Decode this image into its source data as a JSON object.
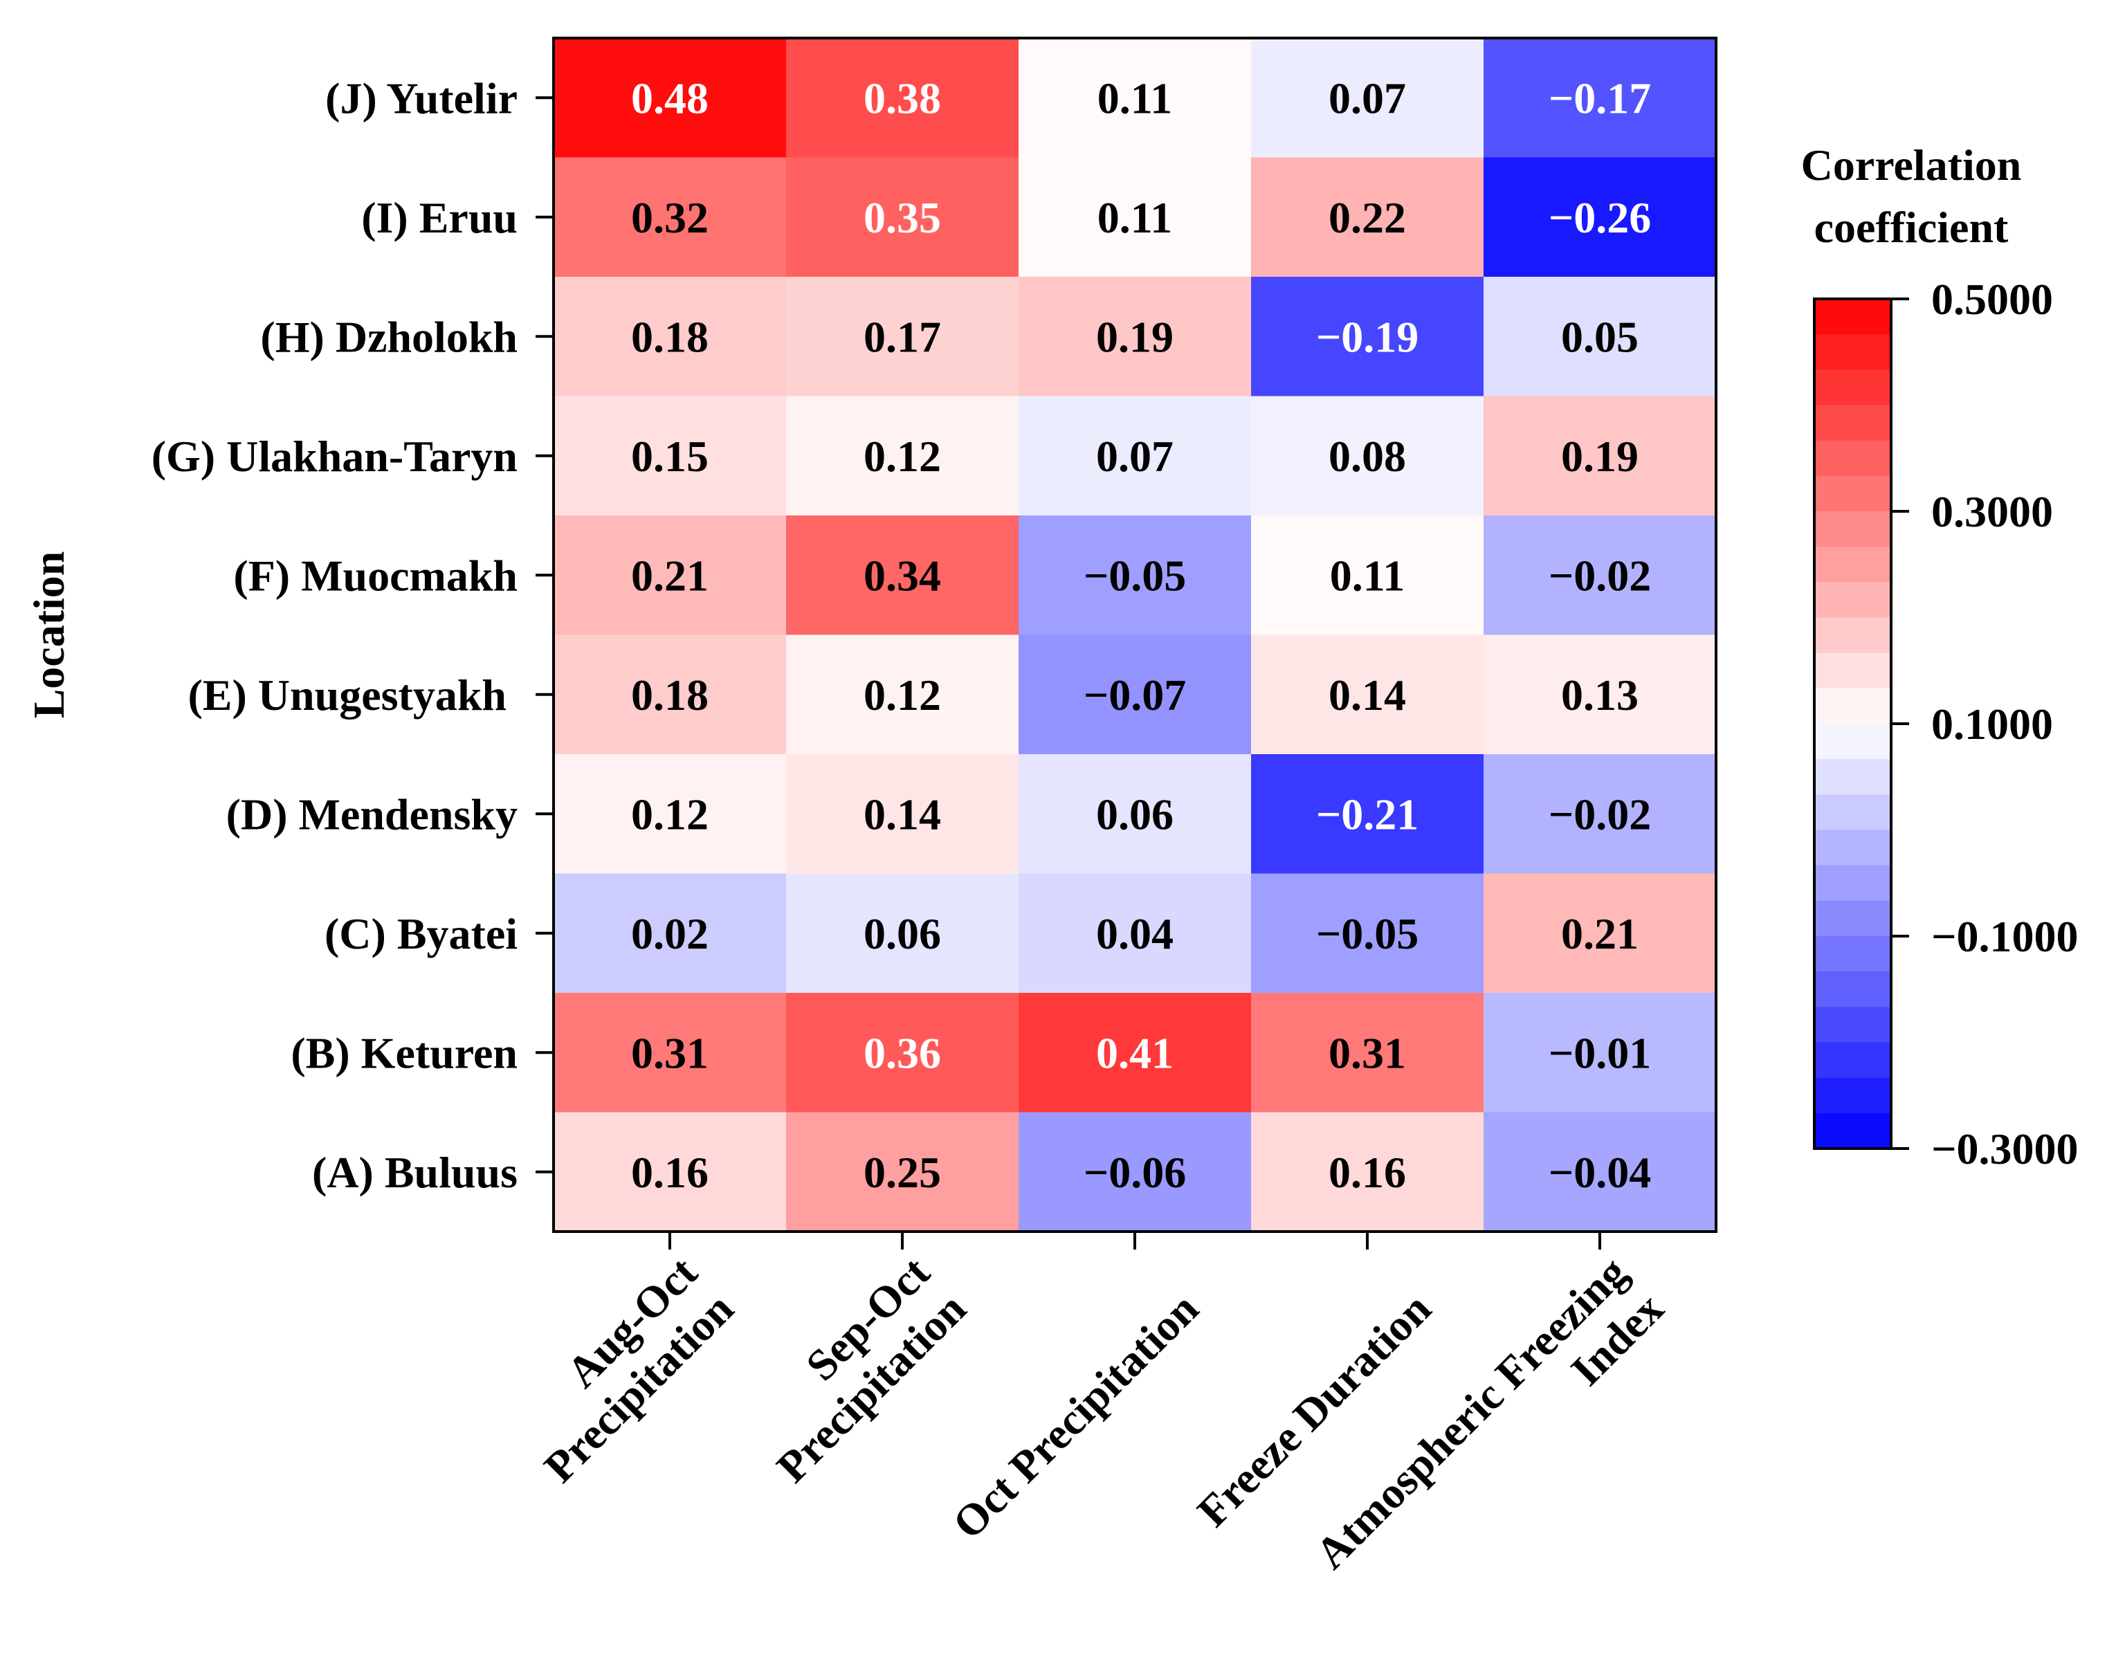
{
  "chart_data": {
    "type": "heatmap",
    "ylabel": "Location",
    "rows": [
      "(J) Yutelir",
      "(I) Eruu",
      "(H) Dzholokh",
      "(G) Ulakhan-Taryn",
      "(F) Muocmakh",
      "(E) Unugestyakh ",
      "(D) Mendensky",
      "(C) Byatei",
      "(B) Keturen",
      "(A) Buluus"
    ],
    "columns": [
      [
        "Aug-Oct",
        "Precipitation"
      ],
      [
        "Sep-Oct",
        "Precipitation"
      ],
      [
        "Oct Precipitation"
      ],
      [
        "Freeze Duration"
      ],
      [
        "Atmospheric Freezing",
        "Index"
      ]
    ],
    "values": [
      [
        0.48,
        0.38,
        0.11,
        0.07,
        -0.17
      ],
      [
        0.32,
        0.35,
        0.11,
        0.22,
        -0.26
      ],
      [
        0.18,
        0.17,
        0.19,
        -0.19,
        0.05
      ],
      [
        0.15,
        0.12,
        0.07,
        0.08,
        0.19
      ],
      [
        0.21,
        0.34,
        -0.05,
        0.11,
        -0.02
      ],
      [
        0.18,
        0.12,
        -0.07,
        0.14,
        0.13
      ],
      [
        0.12,
        0.14,
        0.06,
        -0.21,
        -0.02
      ],
      [
        0.02,
        0.06,
        0.04,
        -0.05,
        0.21
      ],
      [
        0.31,
        0.36,
        0.41,
        0.31,
        -0.01
      ],
      [
        0.16,
        0.25,
        -0.06,
        0.16,
        -0.04
      ]
    ],
    "colorbar": {
      "title": [
        "Correlation",
        "coefficient"
      ],
      "vmin": -0.3,
      "vmax": 0.5,
      "center": 0.1,
      "ticks": [
        0.5,
        0.3,
        0.1,
        -0.1,
        -0.3
      ],
      "tick_labels": [
        "0.5000",
        "0.3000",
        "0.1000",
        "−0.1000",
        "−0.3000"
      ],
      "levels": 24,
      "low_color": "#0000ff",
      "mid_color": "#ffffff",
      "high_color": "#ff0000"
    }
  }
}
